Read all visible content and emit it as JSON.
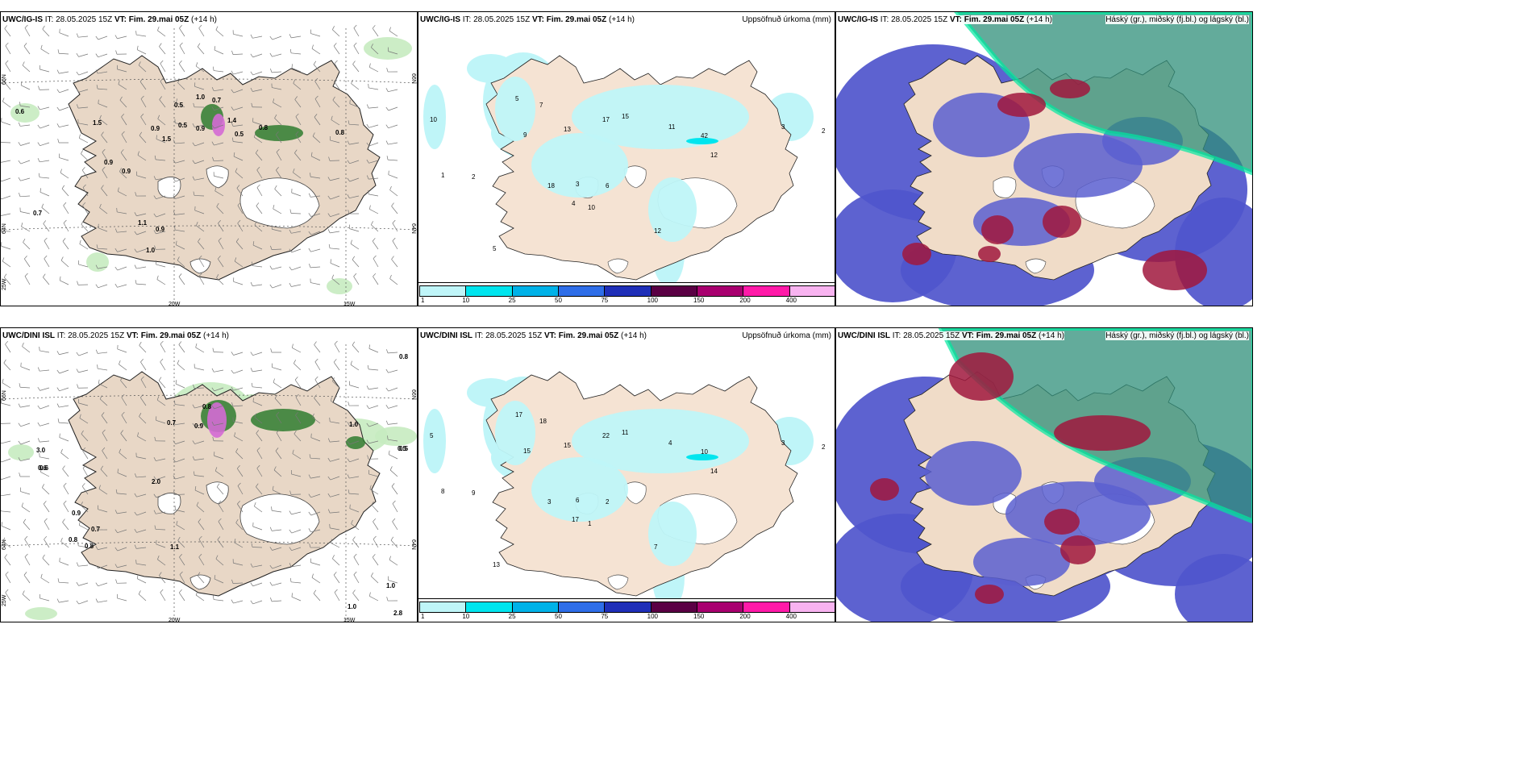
{
  "panels": [
    {
      "model": "UWC/IG-IS",
      "it": "IT: 28.05.2025 15Z",
      "vt_label": "VT:",
      "vt": "Fim. 29.mai 05Z",
      "lead": "(+14 h)",
      "title": ""
    },
    {
      "model": "UWC/IG-IS",
      "it": "IT: 28.05.2025 15Z",
      "vt_label": "VT:",
      "vt": "Fim. 29.mai 05Z",
      "lead": "(+14 h)",
      "title": "Uppsöfnuð úrkoma (mm)"
    },
    {
      "model": "UWC/IG-IS",
      "it": "IT: 28.05.2025 15Z",
      "vt_label": "VT:",
      "vt": "Fim. 29.mai 05Z",
      "lead": "(+14 h)",
      "title": "Háský (gr.), miðský (fj.bl.) og lágský (bl.)"
    },
    {
      "model": "UWC/DINI ISL",
      "it": "IT: 28.05.2025 15Z",
      "vt_label": "VT:",
      "vt": "Fim. 29.mai 05Z",
      "lead": "(+14 h)",
      "title": ""
    },
    {
      "model": "UWC/DINI ISL",
      "it": "IT: 28.05.2025 15Z",
      "vt_label": "VT:",
      "vt": "Fim. 29.mai 05Z",
      "lead": "(+14 h)",
      "title": "Uppsöfnuð úrkoma (mm)"
    },
    {
      "model": "UWC/DINI ISL",
      "it": "IT: 28.05.2025 15Z",
      "vt_label": "VT:",
      "vt": "Fim. 29.mai 05Z",
      "lead": "(+14 h)",
      "title": "Háský (gr.), miðský (fj.bl.) og lágský (bl.)"
    }
  ],
  "axis_labels": {
    "lon_20w": "20W",
    "lon_15w": "15W",
    "lat_66n": "66N",
    "lat_64n": "64N",
    "lon_25w": "25W"
  },
  "colorbar": {
    "ticks": [
      "1",
      "10",
      "25",
      "50",
      "75",
      "100",
      "150",
      "200",
      "400"
    ],
    "colors": [
      "#bff5f8",
      "#00e5ee",
      "#00b2e8",
      "#2f6ee8",
      "#1f2fb8",
      "#5a0044",
      "#a8006f",
      "#ff1aa8",
      "#f8b3f0"
    ]
  },
  "wind_values_top": [
    "0.5",
    "1.0",
    "0.7",
    "0.9",
    "1.5",
    "0.6",
    "0.5",
    "0.9",
    "1.4",
    "0.5",
    "0.8",
    "1.5",
    "0.9",
    "0.9",
    "0.7",
    "1.1",
    "0.9",
    "1.0",
    "0.8"
  ],
  "wind_values_bottom": [
    "0.8",
    "0.9",
    "1.0",
    "0.6",
    "0.9",
    "0.8",
    "0.7",
    "3.0",
    "0.6",
    "1.1",
    "0.5",
    "0.7",
    "0.8",
    "1.0",
    "2.0",
    "1.0",
    "2.8",
    "0.8",
    "0.5"
  ],
  "precip_values_top": [
    "10",
    "1",
    "2",
    "5",
    "7",
    "13",
    "17",
    "15",
    "42",
    "12",
    "11",
    "6",
    "10",
    "18",
    "3",
    "4",
    "9",
    "12",
    "5",
    "2",
    "3"
  ],
  "precip_values_bottom": [
    "5",
    "8",
    "9",
    "17",
    "18",
    "15",
    "22",
    "11",
    "10",
    "14",
    "4",
    "2",
    "1",
    "3",
    "6",
    "17",
    "15",
    "7",
    "13",
    "2",
    "3"
  ]
}
